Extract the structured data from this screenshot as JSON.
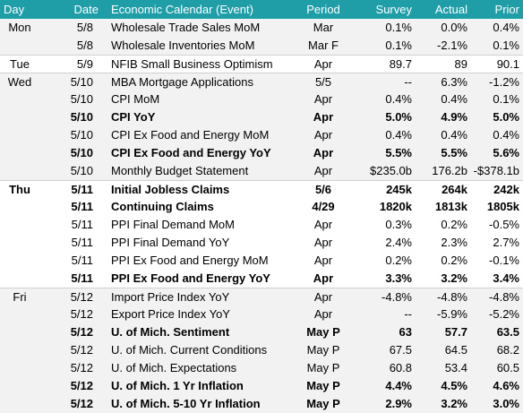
{
  "header": {
    "columns": [
      "Day",
      "Date",
      "Economic Calendar (Event)",
      "Period",
      "Survey",
      "Actual",
      "Prior"
    ]
  },
  "groups": [
    {
      "day": "Mon",
      "rows": [
        {
          "date": "5/8",
          "event": "Wholesale Trade Sales MoM",
          "period": "Mar",
          "survey": "0.1%",
          "actual": "0.0%",
          "prior": "0.4%",
          "bold": false
        },
        {
          "date": "5/8",
          "event": "Wholesale Inventories MoM",
          "period": "Mar F",
          "survey": "0.1%",
          "actual": "-2.1%",
          "prior": "0.1%",
          "bold": false
        }
      ]
    },
    {
      "day": "Tue",
      "rows": [
        {
          "date": "5/9",
          "event": "NFIB Small Business Optimism",
          "period": "Apr",
          "survey": "89.7",
          "actual": "89",
          "prior": "90.1",
          "bold": false
        }
      ]
    },
    {
      "day": "Wed",
      "rows": [
        {
          "date": "5/10",
          "event": "MBA Mortgage Applications",
          "period": "5/5",
          "survey": "--",
          "actual": "6.3%",
          "prior": "-1.2%",
          "bold": false
        },
        {
          "date": "5/10",
          "event": "CPI MoM",
          "period": "Apr",
          "survey": "0.4%",
          "actual": "0.4%",
          "prior": "0.1%",
          "bold": false
        },
        {
          "date": "5/10",
          "event": "CPI YoY",
          "period": "Apr",
          "survey": "5.0%",
          "actual": "4.9%",
          "prior": "5.0%",
          "bold": true
        },
        {
          "date": "5/10",
          "event": "CPI Ex Food and Energy MoM",
          "period": "Apr",
          "survey": "0.4%",
          "actual": "0.4%",
          "prior": "0.4%",
          "bold": false
        },
        {
          "date": "5/10",
          "event": "CPI Ex Food and Energy YoY",
          "period": "Apr",
          "survey": "5.5%",
          "actual": "5.5%",
          "prior": "5.6%",
          "bold": true
        },
        {
          "date": "5/10",
          "event": "Monthly Budget Statement",
          "period": "Apr",
          "survey": "$235.0b",
          "actual": "176.2b",
          "prior": "-$378.1b",
          "bold": false
        }
      ]
    },
    {
      "day": "Thu",
      "bold": true,
      "rows": [
        {
          "date": "5/11",
          "event": "Initial Jobless Claims",
          "period": "5/6",
          "survey": "245k",
          "actual": "264k",
          "prior": "242k",
          "bold": true
        },
        {
          "date": "5/11",
          "event": "Continuing Claims",
          "period": "4/29",
          "survey": "1820k",
          "actual": "1813k",
          "prior": "1805k",
          "bold": true
        },
        {
          "date": "5/11",
          "event": "PPI Final Demand MoM",
          "period": "Apr",
          "survey": "0.3%",
          "actual": "0.2%",
          "prior": "-0.5%",
          "bold": false
        },
        {
          "date": "5/11",
          "event": "PPI Final Demand YoY",
          "period": "Apr",
          "survey": "2.4%",
          "actual": "2.3%",
          "prior": "2.7%",
          "bold": false
        },
        {
          "date": "5/11",
          "event": "PPI Ex Food and Energy MoM",
          "period": "Apr",
          "survey": "0.2%",
          "actual": "0.2%",
          "prior": "-0.1%",
          "bold": false
        },
        {
          "date": "5/11",
          "event": "PPI Ex Food and Energy YoY",
          "period": "Apr",
          "survey": "3.3%",
          "actual": "3.2%",
          "prior": "3.4%",
          "bold": true
        }
      ]
    },
    {
      "day": "Fri",
      "rows": [
        {
          "date": "5/12",
          "event": "Import Price Index YoY",
          "period": "Apr",
          "survey": "-4.8%",
          "actual": "-4.8%",
          "prior": "-4.8%",
          "bold": false
        },
        {
          "date": "5/12",
          "event": "Export Price Index YoY",
          "period": "Apr",
          "survey": "--",
          "actual": "-5.9%",
          "prior": "-5.2%",
          "bold": false
        },
        {
          "date": "5/12",
          "event": "U. of Mich. Sentiment",
          "period": "May P",
          "survey": "63",
          "actual": "57.7",
          "prior": "63.5",
          "bold": true
        },
        {
          "date": "5/12",
          "event": "U. of Mich. Current Conditions",
          "period": "May P",
          "survey": "67.5",
          "actual": "64.5",
          "prior": "68.2",
          "bold": false
        },
        {
          "date": "5/12",
          "event": "U. of Mich. Expectations",
          "period": "May P",
          "survey": "60.8",
          "actual": "53.4",
          "prior": "60.5",
          "bold": false
        },
        {
          "date": "5/12",
          "event": "U. of Mich. 1 Yr Inflation",
          "period": "May P",
          "survey": "4.4%",
          "actual": "4.5%",
          "prior": "4.6%",
          "bold": true
        },
        {
          "date": "5/12",
          "event": "U. of Mich. 5-10 Yr Inflation",
          "period": "May P",
          "survey": "2.9%",
          "actual": "3.2%",
          "prior": "3.0%",
          "bold": true
        }
      ]
    }
  ]
}
